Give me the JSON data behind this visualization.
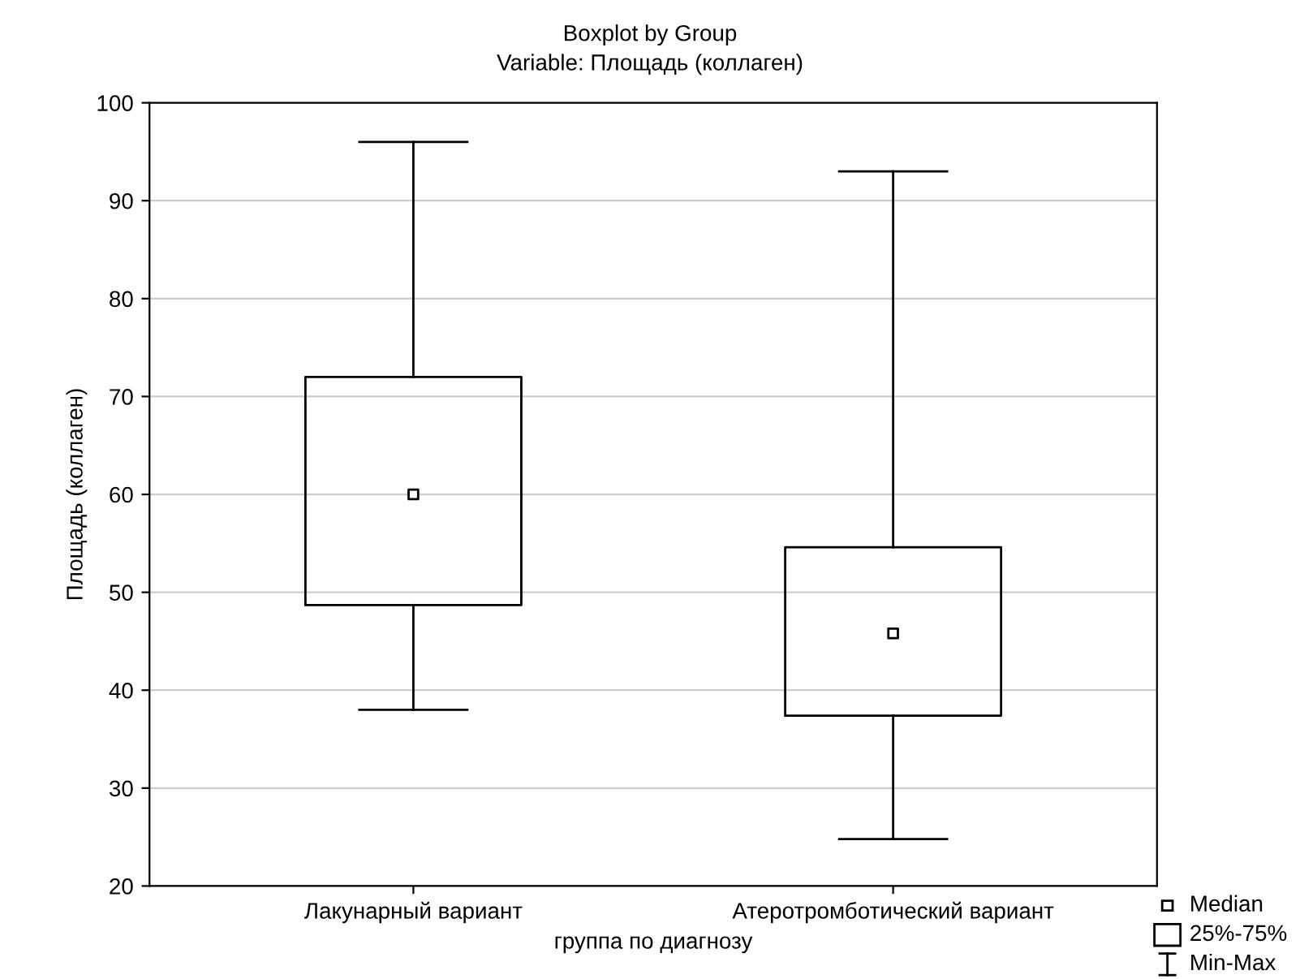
{
  "chart_data": {
    "type": "box",
    "title": "Boxplot by Group",
    "subtitle": "Variable: Площадь (коллаген)",
    "xlabel": "группа по диагнозу",
    "ylabel": "Площадь (коллаген)",
    "categories": [
      "Лакунарный вариант",
      "Атеротромботический вариант"
    ],
    "boxes": [
      {
        "low": 38,
        "q1": 48.7,
        "median": 60,
        "q3": 72,
        "high": 96
      },
      {
        "low": 24.8,
        "q1": 37.4,
        "median": 45.8,
        "q3": 54.6,
        "high": 93
      }
    ],
    "ylim": [
      20,
      100
    ],
    "yticks": [
      20,
      30,
      40,
      50,
      60,
      70,
      80,
      90,
      100
    ],
    "grid": "y",
    "annotations": [
      "Median",
      "25%-75%",
      "Min-Max"
    ]
  }
}
